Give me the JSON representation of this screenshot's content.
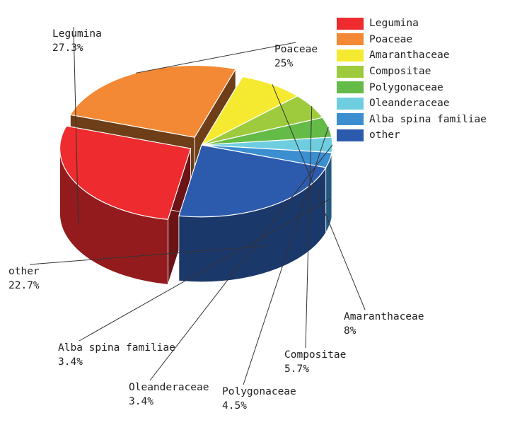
{
  "chart_data": {
    "type": "pie",
    "title": "",
    "slices": [
      {
        "name": "Legumina",
        "value": 27.3,
        "label": "27.3%",
        "color": "#ee2b2e"
      },
      {
        "name": "Poaceae",
        "value": 25,
        "label": "25%",
        "color": "#f38934"
      },
      {
        "name": "Amaranthaceae",
        "value": 8,
        "label": "8%",
        "color": "#f6ea30"
      },
      {
        "name": "Compositae",
        "value": 5.7,
        "label": "5.7%",
        "color": "#9dcb3d"
      },
      {
        "name": "Polygonaceae",
        "value": 4.5,
        "label": "4.5%",
        "color": "#64bb47"
      },
      {
        "name": "Oleanderaceae",
        "value": 3.4,
        "label": "3.4%",
        "color": "#6fcde0"
      },
      {
        "name": "Alba spina familiae",
        "value": 3.4,
        "label": "3.4%",
        "color": "#3b8ed0"
      },
      {
        "name": "other",
        "value": 22.7,
        "label": "22.7%",
        "color": "#2c5aad"
      }
    ],
    "legend_position": "top-right",
    "style": "3d-exploded"
  }
}
